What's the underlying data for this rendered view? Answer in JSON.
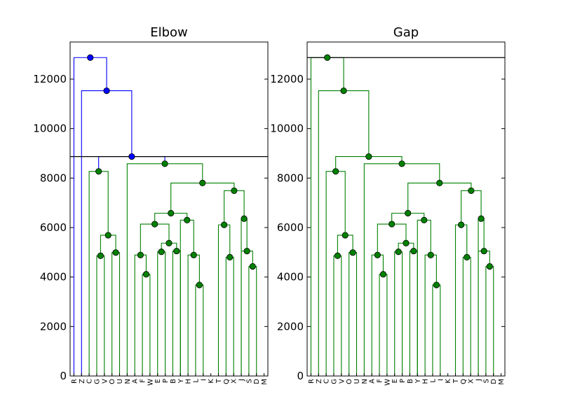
{
  "chart_data": [
    {
      "type": "dendrogram",
      "title": "Elbow",
      "ylim": [
        0,
        13500
      ],
      "yticks": [
        0,
        2000,
        4000,
        6000,
        8000,
        10000,
        12000
      ],
      "ytick_labels": [
        "0",
        "2000",
        "4000",
        "6000",
        "8000",
        "10000",
        "12000"
      ],
      "leaves": [
        "R",
        "Z",
        "C",
        "G",
        "V",
        "O",
        "U",
        "N",
        "A",
        "F",
        "W",
        "E",
        "P",
        "B",
        "Y",
        "H",
        "L",
        "I",
        "K",
        "T",
        "Q",
        "X",
        "J",
        "S",
        "D",
        "M"
      ],
      "cut_height": 8870,
      "colors": {
        "above": "#0000ff",
        "below": "#008000",
        "cut": "#000000",
        "marker_above": "#0000ff",
        "marker_below": "#008000"
      },
      "merges": [
        {
          "x1": 10,
          "h1": 0,
          "x2": 11,
          "h2": 0,
          "h": 4110
        },
        {
          "x1": 17,
          "h1": 0,
          "x2": 18,
          "h2": 0,
          "h": 3680
        },
        {
          "x1": 24,
          "h1": 0,
          "x2": 25,
          "h2": 0,
          "h": 4430
        },
        {
          "x1": 4,
          "h1": 0,
          "x2": 5,
          "h2": 0,
          "h": 4860
        },
        {
          "x1": 9,
          "h1": 0,
          "x2": 10.5,
          "h2": 4110,
          "h": 4890
        },
        {
          "x1": 16,
          "h1": 0,
          "x2": 17.5,
          "h2": 3680,
          "h": 4890
        },
        {
          "x1": 21,
          "h1": 0,
          "x2": 22,
          "h2": 0,
          "h": 4800
        },
        {
          "x1": 6,
          "h1": 0,
          "x2": 7,
          "h2": 0,
          "h": 4990
        },
        {
          "x1": 12,
          "h1": 0,
          "x2": 13,
          "h2": 0,
          "h": 5020
        },
        {
          "x1": 14,
          "h1": 0,
          "x2": 15,
          "h2": 0,
          "h": 5050
        },
        {
          "x1": 23,
          "h1": 0,
          "x2": 24.5,
          "h2": 4430,
          "h": 5050
        },
        {
          "x1": 12.5,
          "h1": 5020,
          "x2": 14.5,
          "h2": 5050,
          "h": 5370
        },
        {
          "x1": 4.5,
          "h1": 4860,
          "x2": 6.5,
          "h2": 4990,
          "h": 5690
        },
        {
          "x1": 20,
          "h1": 0,
          "x2": 21.5,
          "h2": 4800,
          "h": 6110
        },
        {
          "x1": 9.75,
          "h1": 4890,
          "x2": 13.5,
          "h2": 5370,
          "h": 6140
        },
        {
          "x1": 15,
          "h1": 0,
          "x2": 16.75,
          "h2": 4890,
          "h": 6300
        },
        {
          "x1": 23,
          "h1": 0,
          "x2": 23.75,
          "h2": 5050,
          "h": 6360
        },
        {
          "x1": 11.625,
          "h1": 6140,
          "x2": 15.875,
          "h2": 6300,
          "h": 6580
        },
        {
          "x1": 20.75,
          "h1": 6110,
          "x2": 23.375,
          "h2": 6360,
          "h": 7490
        },
        {
          "x1": 13.75,
          "h1": 6580,
          "x2": 22.0625,
          "h2": 7490,
          "h": 7800
        },
        {
          "x1": 3,
          "h1": 0,
          "x2": 5.5,
          "h2": 5690,
          "h": 8270
        },
        {
          "x1": 8,
          "h1": 0,
          "x2": 17.90625,
          "h2": 7800,
          "h": 8580
        },
        {
          "x1": 4.25,
          "h1": 8270,
          "x2": 12.953125,
          "h2": 8580,
          "h": 8870
        },
        {
          "x1": 2,
          "h1": 0,
          "x2": 8.6015625,
          "h2": 8870,
          "h": 11530
        },
        {
          "x1": 1,
          "h1": 0,
          "x2": 5.30078125,
          "h2": 11530,
          "h": 12870
        }
      ],
      "blue_merge_count": 3
    },
    {
      "type": "dendrogram",
      "title": "Gap",
      "ylim": [
        0,
        13500
      ],
      "yticks": [
        0,
        2000,
        4000,
        6000,
        8000,
        10000,
        12000
      ],
      "ytick_labels": [
        "0",
        "2000",
        "4000",
        "6000",
        "8000",
        "10000",
        "12000"
      ],
      "leaves": [
        "R",
        "Z",
        "C",
        "G",
        "V",
        "O",
        "U",
        "N",
        "A",
        "F",
        "W",
        "E",
        "P",
        "B",
        "Y",
        "H",
        "L",
        "I",
        "K",
        "T",
        "Q",
        "X",
        "J",
        "S",
        "D",
        "M"
      ],
      "cut_height": 12870,
      "colors": {
        "above": "#0000ff",
        "below": "#008000",
        "cut": "#000000",
        "marker_above": "#008000",
        "marker_below": "#008000"
      },
      "merges": "same_as_elbow",
      "blue_merge_count": 0
    }
  ]
}
